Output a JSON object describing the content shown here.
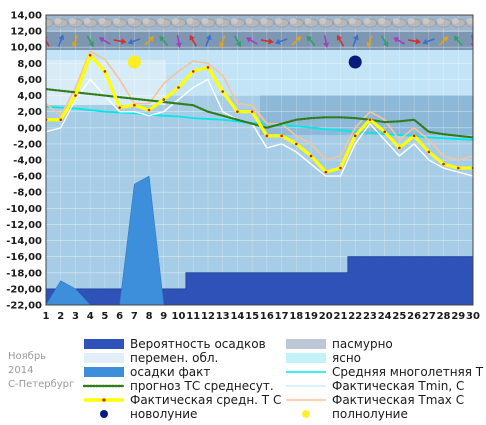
{
  "footer": {
    "month": "Ноябрь",
    "year": "2014",
    "city": "С-Петербург"
  },
  "chart_data": {
    "type": "line",
    "xlim": [
      1,
      30
    ],
    "ylim": [
      -22,
      14
    ],
    "x": [
      1,
      2,
      3,
      4,
      5,
      6,
      7,
      8,
      9,
      10,
      11,
      12,
      13,
      14,
      15,
      16,
      17,
      18,
      19,
      20,
      21,
      22,
      23,
      24,
      25,
      26,
      27,
      28,
      29,
      30
    ],
    "yticks": [
      "14,00",
      "12,00",
      "10,00",
      "8,00",
      "6,00",
      "4,00",
      "2,00",
      "0,00",
      "-2,00",
      "-4,00",
      "-6,00",
      "-8,00",
      "-10,00",
      "-12,00",
      "-14,00",
      "-16,00",
      "-18,00",
      "-20,00",
      "-22,00"
    ],
    "xticks": [
      "1",
      "2",
      "3",
      "4",
      "5",
      "6",
      "7",
      "8",
      "9",
      "10",
      "11",
      "12",
      "13",
      "14",
      "15",
      "16",
      "17",
      "18",
      "19",
      "20",
      "21",
      "22",
      "23",
      "24",
      "25",
      "26",
      "27",
      "28",
      "29",
      "30"
    ],
    "series": [
      {
        "name": "Фактическая средн. Т С",
        "color": "#ffff00",
        "values": [
          1.0,
          1.0,
          4.0,
          9.0,
          7.0,
          2.5,
          2.8,
          2.2,
          3.5,
          5.0,
          7.0,
          7.5,
          4.5,
          2.0,
          2.0,
          -1.0,
          -1.0,
          -2.0,
          -3.5,
          -5.5,
          -5.0,
          -1.0,
          1.0,
          -0.5,
          -2.5,
          -1.0,
          -3.0,
          -4.5,
          -5.0,
          -5.0
        ]
      },
      {
        "name": "Фактическая Tmax, С",
        "color": "#f5c49a",
        "values": [
          3.0,
          1.5,
          5.0,
          9.5,
          8.5,
          6.0,
          3.0,
          3.0,
          5.5,
          7.0,
          8.3,
          8.0,
          6.5,
          3.0,
          2.8,
          0.5,
          0.5,
          -1.0,
          -2.0,
          -4.0,
          -3.5,
          0.0,
          2.0,
          1.0,
          -1.5,
          0.0,
          -1.5,
          -3.5,
          -4.0,
          -3.5
        ]
      },
      {
        "name": "Фактическая Tmin, С",
        "color": "#ffffff",
        "values": [
          -0.5,
          0.0,
          3.5,
          6.0,
          4.0,
          2.0,
          2.0,
          1.5,
          2.0,
          3.5,
          5.0,
          6.0,
          2.0,
          1.0,
          0.5,
          -2.5,
          -2.0,
          -3.0,
          -4.5,
          -6.0,
          -6.0,
          -2.0,
          0.5,
          -1.5,
          -3.5,
          -2.0,
          -4.0,
          -5.0,
          -5.5,
          -6.0
        ]
      },
      {
        "name": "Средняя многолетняя Т С",
        "color": "#00e8e8",
        "values": [
          2.6,
          2.5,
          2.4,
          2.2,
          2.0,
          1.9,
          1.8,
          1.6,
          1.5,
          1.4,
          1.2,
          1.1,
          1.0,
          0.8,
          0.6,
          0.5,
          0.3,
          0.2,
          0.0,
          -0.2,
          -0.3,
          -0.5,
          -0.6,
          -0.8,
          -0.9,
          -1.0,
          -1.2,
          -1.3,
          -1.4,
          -1.5
        ]
      },
      {
        "name": "прогноз ТС среднесут.",
        "color": "#2e7d1a",
        "values": [
          4.8,
          4.6,
          4.4,
          4.2,
          4.0,
          3.8,
          3.6,
          3.4,
          3.2,
          3.0,
          2.8,
          2.0,
          1.5,
          1.0,
          0.5,
          0.0,
          0.5,
          1.0,
          1.2,
          1.3,
          1.3,
          1.2,
          1.0,
          0.7,
          0.8,
          1.0,
          -0.5,
          -0.8,
          -1.0,
          -1.2
        ]
      },
      {
        "name": "осадки факт",
        "color": "#3d8fdc",
        "values": [
          -22,
          -19,
          -20,
          -22,
          -22,
          -22,
          -7,
          -6,
          -22,
          -22,
          -22,
          -22,
          -22,
          -22,
          -22,
          -22,
          -22,
          -22,
          -22,
          -22,
          -22,
          -22,
          -22,
          -22,
          -22,
          -22,
          -22,
          -22,
          -22,
          -22
        ]
      },
      {
        "name": "Вероятность осадков",
        "color": "#2e52b8",
        "values": [
          -20,
          -20,
          -20,
          -20,
          -20,
          -20,
          -20,
          -20,
          -20,
          -20,
          -18,
          -18,
          -18,
          -18,
          -18,
          -18,
          -18,
          -18,
          -18,
          -18,
          -18,
          -16,
          -16,
          -16,
          -16,
          -16,
          -16,
          -16,
          -16,
          -16
        ]
      }
    ],
    "legend": [
      {
        "label": "Вероятность осадков",
        "kind": "rect",
        "color": "#2e52b8"
      },
      {
        "label": "пасмурно",
        "kind": "rect",
        "color": "#bcc8d6"
      },
      {
        "label": "перемен. обл.",
        "kind": "rect",
        "color": "#e2eef9"
      },
      {
        "label": "ясно",
        "kind": "rect",
        "color": "#c4f2f8"
      },
      {
        "label": "осадки факт",
        "kind": "rect",
        "color": "#3d8fdc"
      },
      {
        "label": "Средняя многолетняя Т С",
        "kind": "line",
        "color": "#00e8e8"
      },
      {
        "label": "прогноз ТС среднесут.",
        "kind": "dots",
        "color": "#2e7d1a"
      },
      {
        "label": "Фактическая Tmin, С",
        "kind": "line",
        "color": "#cfeefe"
      },
      {
        "label": "Фактическая средн. Т С",
        "kind": "thick",
        "color": "#ffff00"
      },
      {
        "label": "Фактическая Tmax С",
        "kind": "line",
        "color": "#f5c49a"
      },
      {
        "label": "новолуние",
        "kind": "dot",
        "color": "#0a1a7a"
      },
      {
        "label": "полнолуние",
        "kind": "dot",
        "color": "#ffee33"
      }
    ],
    "moon": [
      {
        "phase": "полнолуние",
        "day": 7,
        "color": "#ffee22"
      },
      {
        "phase": "новолуние",
        "day": 22,
        "color": "#0a1a7a"
      }
    ],
    "colors": {
      "sky_light": "#c2e4f6",
      "sky_mid": "#a7cde6",
      "sky_band": "#7fb0d4",
      "icon_row": "#6e8aa6",
      "cloud": "#b8b8b8"
    }
  }
}
